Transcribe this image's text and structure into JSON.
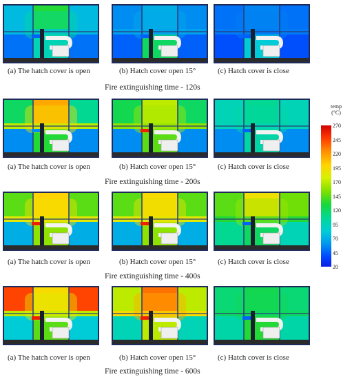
{
  "rows": [
    {
      "time_label": "Fire extinguishing time - 120s",
      "panels": [
        {
          "caption": "(a) The hatch cover is open",
          "levels": {
            "top_left": 0.22,
            "top_center": 0.45,
            "top_right": 0.22,
            "upper_mid": 0.22,
            "lower_left": 0.12,
            "lower_center": 0.3,
            "lower_right": 0.12,
            "vent": 0.1
          }
        },
        {
          "caption": "(b) Hatch cover open 15°",
          "levels": {
            "top_left": 0.15,
            "top_center": 0.2,
            "top_right": 0.15,
            "upper_mid": 0.18,
            "lower_left": 0.1,
            "lower_center": 0.4,
            "lower_right": 0.1,
            "vent": 0.1
          }
        },
        {
          "caption": "(c) Hatch cover is close",
          "levels": {
            "top_left": 0.12,
            "top_center": 0.14,
            "top_right": 0.12,
            "upper_mid": 0.13,
            "lower_left": 0.08,
            "lower_center": 0.25,
            "lower_right": 0.08,
            "vent": 0.1
          }
        }
      ]
    },
    {
      "time_label": "Fire extinguishing time - 200s",
      "panels": [
        {
          "caption": "(a) The hatch cover is open",
          "levels": {
            "top_left": 0.4,
            "top_center": 0.78,
            "top_right": 0.35,
            "upper_mid": 0.6,
            "lower_left": 0.15,
            "lower_center": 0.45,
            "lower_right": 0.15,
            "vent": 0.15
          }
        },
        {
          "caption": "(b) Hatch cover open 15°",
          "levels": {
            "top_left": 0.42,
            "top_center": 0.6,
            "top_right": 0.4,
            "upper_mid": 0.55,
            "lower_left": 0.15,
            "lower_center": 0.5,
            "lower_right": 0.15,
            "vent": 0.95
          }
        },
        {
          "caption": "(c) Hatch cover is close",
          "levels": {
            "top_left": 0.3,
            "top_center": 0.35,
            "top_right": 0.3,
            "upper_mid": 0.3,
            "lower_left": 0.15,
            "lower_center": 0.32,
            "lower_right": 0.15,
            "vent": 0.1
          }
        }
      ]
    },
    {
      "time_label": "Fire extinguishing time - 400s",
      "panels": [
        {
          "caption": "(a) The hatch cover is open",
          "levels": {
            "top_left": 0.5,
            "top_center": 0.72,
            "top_right": 0.5,
            "upper_mid": 0.65,
            "lower_left": 0.2,
            "lower_center": 0.55,
            "lower_right": 0.2,
            "vent": 0.95
          }
        },
        {
          "caption": "(b) Hatch cover open 15°",
          "levels": {
            "top_left": 0.5,
            "top_center": 0.7,
            "top_right": 0.5,
            "upper_mid": 0.65,
            "lower_left": 0.2,
            "lower_center": 0.55,
            "lower_right": 0.2,
            "vent": 0.95
          }
        },
        {
          "caption": "(c) Hatch cover is close",
          "levels": {
            "top_left": 0.5,
            "top_center": 0.68,
            "top_right": 0.52,
            "upper_mid": 0.45,
            "lower_left": 0.35,
            "lower_center": 0.4,
            "lower_right": 0.3,
            "vent": 0.1
          }
        }
      ]
    },
    {
      "time_label": "Fire extinguishing time - 600s",
      "panels": [
        {
          "caption": "(a) The hatch cover is open",
          "levels": {
            "top_left": 0.9,
            "top_center": 0.7,
            "top_right": 0.9,
            "upper_mid": 0.6,
            "lower_left": 0.25,
            "lower_center": 0.5,
            "lower_right": 0.25,
            "vent": 0.95
          }
        },
        {
          "caption": "(b) Hatch cover open 15°",
          "levels": {
            "top_left": 0.6,
            "top_center": 0.85,
            "top_right": 0.6,
            "upper_mid": 0.7,
            "lower_left": 0.3,
            "lower_center": 0.6,
            "lower_right": 0.3,
            "vent": 0.95
          }
        },
        {
          "caption": "(c) Hatch cover is close",
          "levels": {
            "top_left": 0.38,
            "top_center": 0.42,
            "top_right": 0.38,
            "upper_mid": 0.4,
            "lower_left": 0.32,
            "lower_center": 0.45,
            "lower_right": 0.32,
            "vent": 0.1
          }
        }
      ]
    }
  ],
  "legend": {
    "title_line1": "temp",
    "title_line2": "(°C)",
    "ticks": [
      "270",
      "245",
      "220",
      "195",
      "170",
      "145",
      "120",
      "95",
      "70",
      "45",
      "20"
    ]
  }
}
